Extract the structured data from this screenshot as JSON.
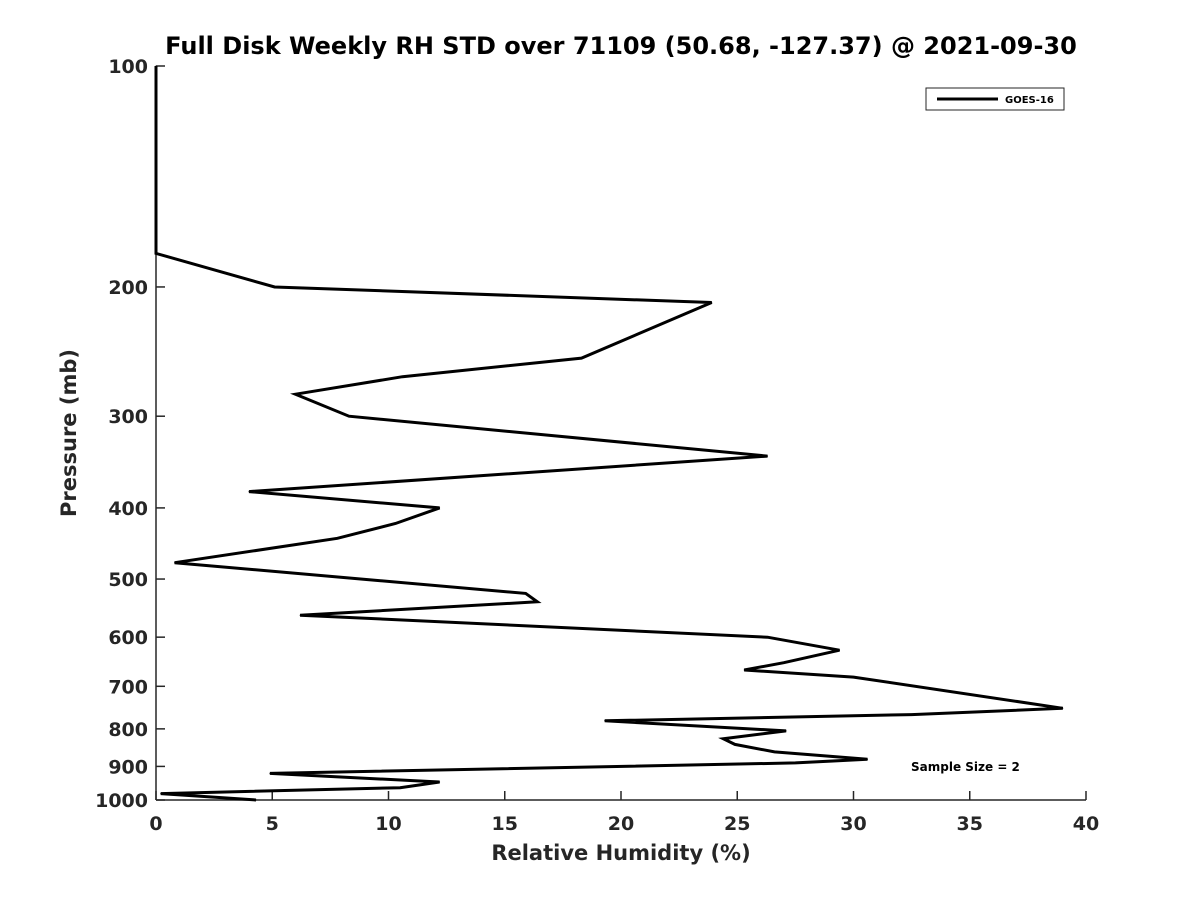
{
  "chart_data": {
    "type": "line",
    "title": "Full Disk Weekly RH STD over 71109 (50.68, -127.37) @ 2021-09-30",
    "xlabel": "Relative Humidity (%)",
    "ylabel": "Pressure (mb)",
    "xlim": [
      0,
      40
    ],
    "ylim": [
      100,
      1000
    ],
    "y_scale": "log",
    "y_reversed": true,
    "x_ticks": [
      "0",
      "5",
      "10",
      "15",
      "20",
      "25",
      "30",
      "35",
      "40"
    ],
    "y_ticks": [
      "100",
      "200",
      "300",
      "400",
      "500",
      "600",
      "700",
      "800",
      "900",
      "1000"
    ],
    "grid": false,
    "legend_position": "top-right",
    "annotation": "Sample Size = 2",
    "series": [
      {
        "name": "GOES-16",
        "color": "#000000",
        "points": [
          {
            "x": 0,
            "p": 100
          },
          {
            "x": 0,
            "p": 150
          },
          {
            "x": 0,
            "p": 180
          },
          {
            "x": 5.1,
            "p": 200
          },
          {
            "x": 23.9,
            "p": 210
          },
          {
            "x": 18.3,
            "p": 250
          },
          {
            "x": 10.6,
            "p": 265
          },
          {
            "x": 6.0,
            "p": 280
          },
          {
            "x": 8.3,
            "p": 300
          },
          {
            "x": 26.3,
            "p": 340
          },
          {
            "x": 4.0,
            "p": 380
          },
          {
            "x": 12.2,
            "p": 400
          },
          {
            "x": 10.3,
            "p": 420
          },
          {
            "x": 7.8,
            "p": 440
          },
          {
            "x": 0.8,
            "p": 475
          },
          {
            "x": 8.8,
            "p": 500
          },
          {
            "x": 15.9,
            "p": 523
          },
          {
            "x": 16.4,
            "p": 537
          },
          {
            "x": 6.2,
            "p": 560
          },
          {
            "x": 26.3,
            "p": 600
          },
          {
            "x": 29.4,
            "p": 625
          },
          {
            "x": 27.0,
            "p": 650
          },
          {
            "x": 25.3,
            "p": 665
          },
          {
            "x": 30.0,
            "p": 680
          },
          {
            "x": 39.0,
            "p": 750
          },
          {
            "x": 32.5,
            "p": 765
          },
          {
            "x": 19.3,
            "p": 780
          },
          {
            "x": 27.1,
            "p": 805
          },
          {
            "x": 24.4,
            "p": 825
          },
          {
            "x": 24.9,
            "p": 840
          },
          {
            "x": 26.6,
            "p": 860
          },
          {
            "x": 30.6,
            "p": 880
          },
          {
            "x": 27.5,
            "p": 890
          },
          {
            "x": 4.9,
            "p": 920
          },
          {
            "x": 12.2,
            "p": 945
          },
          {
            "x": 10.5,
            "p": 962
          },
          {
            "x": 0.2,
            "p": 980
          },
          {
            "x": 4.3,
            "p": 1000
          }
        ]
      }
    ]
  }
}
